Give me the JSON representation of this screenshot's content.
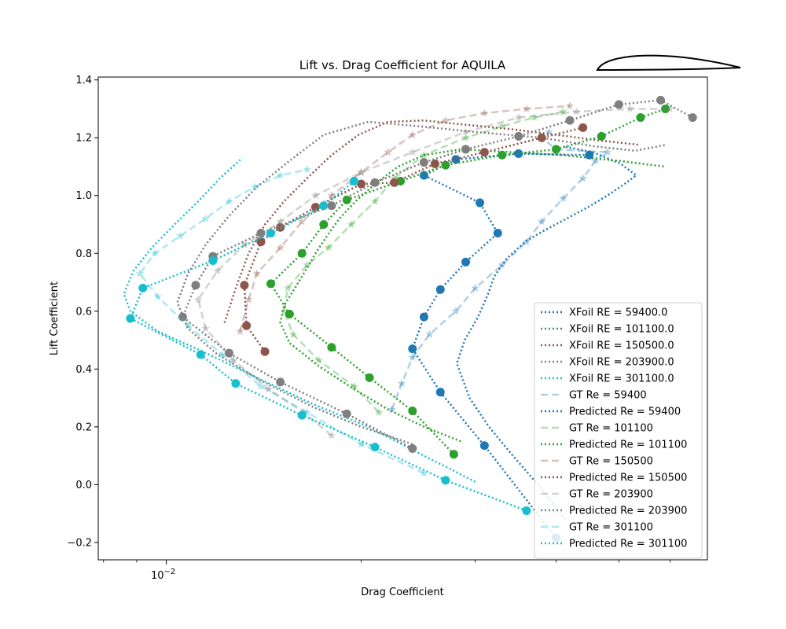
{
  "chart_data": {
    "type": "line",
    "title": "Lift vs. Drag Coefficient for AQUILA",
    "xlabel": "Drag Coefficient",
    "ylabel": "Lift Coefficient",
    "xscale": "log",
    "xlim": [
      0.00785,
      0.0685
    ],
    "ylim": [
      -0.26,
      1.41
    ],
    "x_ticks": [
      {
        "value": 0.01,
        "base": "10",
        "exp": "−2"
      }
    ],
    "y_ticks": [
      -0.2,
      0.0,
      0.2,
      0.4,
      0.6,
      0.8,
      1.0,
      1.2,
      1.4
    ],
    "y_tick_labels": [
      "−0.2",
      "0.0",
      "0.2",
      "0.4",
      "0.6",
      "0.8",
      "1.0",
      "1.2",
      "1.4"
    ],
    "legend_position": "lower-right",
    "colors": {
      "re59400": "#1f77b4",
      "re101100": "#2ca02c",
      "re150500": "#8c564b",
      "re203900": "#7f7f7f",
      "re301100": "#17becf"
    },
    "series": [
      {
        "name": "XFoil RE = 59400.0",
        "kind": "xfoil",
        "color": "#1f77b4",
        "x": [
          0.0413,
          0.0375,
          0.0343,
          0.0315,
          0.0294,
          0.0281,
          0.0289,
          0.0303,
          0.0314,
          0.0321,
          0.0335,
          0.0358,
          0.0384,
          0.0415,
          0.0448,
          0.048,
          0.051,
          0.0532,
          0.0503,
          0.0456,
          0.041
        ],
        "y": [
          -0.12,
          0.0,
          0.1,
          0.2,
          0.3,
          0.42,
          0.5,
          0.58,
          0.66,
          0.72,
          0.78,
          0.84,
          0.88,
          0.92,
          0.96,
          1.0,
          1.04,
          1.07,
          1.11,
          1.15,
          1.17
        ]
      },
      {
        "name": "XFoil RE = 101100.0",
        "kind": "xfoil",
        "color": "#2ca02c",
        "x": [
          0.0285,
          0.025,
          0.022,
          0.0195,
          0.0172,
          0.0155,
          0.015,
          0.0152,
          0.0158,
          0.0164,
          0.017,
          0.0177,
          0.0185,
          0.0196,
          0.021,
          0.0228,
          0.025,
          0.0285,
          0.034,
          0.041,
          0.05,
          0.059
        ],
        "y": [
          0.15,
          0.2,
          0.26,
          0.33,
          0.41,
          0.49,
          0.56,
          0.62,
          0.68,
          0.74,
          0.8,
          0.86,
          0.92,
          0.98,
          1.04,
          1.1,
          1.14,
          1.16,
          1.15,
          1.14,
          1.12,
          1.1
        ]
      },
      {
        "name": "XFoil RE = 150500.0",
        "kind": "xfoil",
        "color": "#8c564b",
        "x": [
          0.0123,
          0.0128,
          0.0134,
          0.0142,
          0.0152,
          0.0165,
          0.018,
          0.0198,
          0.022,
          0.025,
          0.029,
          0.034,
          0.04,
          0.047,
          0.054
        ],
        "y": [
          0.56,
          0.68,
          0.8,
          0.9,
          0.98,
          1.06,
          1.14,
          1.21,
          1.255,
          1.26,
          1.245,
          1.23,
          1.21,
          1.19,
          1.175
        ]
      },
      {
        "name": "XFoil RE = 203900.0",
        "kind": "xfoil",
        "color": "#7f7f7f",
        "x": [
          0.024,
          0.02,
          0.0168,
          0.014,
          0.012,
          0.0108,
          0.0104,
          0.0108,
          0.0115,
          0.0125,
          0.0138,
          0.0155,
          0.0175,
          0.0205,
          0.0245,
          0.03,
          0.038,
          0.046,
          0.053,
          0.059
        ],
        "y": [
          0.14,
          0.2,
          0.27,
          0.36,
          0.45,
          0.54,
          0.63,
          0.73,
          0.83,
          0.93,
          1.03,
          1.12,
          1.21,
          1.255,
          1.24,
          1.22,
          1.2,
          1.17,
          1.155,
          1.175
        ]
      },
      {
        "name": "XFoil RE = 301100.0",
        "kind": "xfoil",
        "color": "#17becf",
        "x": [
          0.03,
          0.025,
          0.0205,
          0.0168,
          0.0138,
          0.0114,
          0.0097,
          0.0088,
          0.0086,
          0.0089,
          0.0095,
          0.0103,
          0.0112,
          0.0121,
          0.0131
        ],
        "y": [
          0.01,
          0.1,
          0.2,
          0.28,
          0.37,
          0.46,
          0.53,
          0.6,
          0.66,
          0.74,
          0.82,
          0.9,
          0.98,
          1.06,
          1.13
        ]
      },
      {
        "name": "GT Re = 59400",
        "kind": "gt",
        "color": "#1f77b4",
        "x": [
          0.0223,
          0.0231,
          0.024,
          0.0255,
          0.028,
          0.03,
          0.033,
          0.036,
          0.038,
          0.041,
          0.044,
          0.046,
          0.048,
          0.04,
          0.038,
          0.039
        ],
        "y": [
          0.26,
          0.35,
          0.44,
          0.52,
          0.6,
          0.68,
          0.76,
          0.84,
          0.91,
          0.99,
          1.06,
          1.12,
          1.15,
          1.16,
          1.2,
          1.22
        ]
      },
      {
        "name": "Predicted Re = 59400",
        "kind": "pred",
        "color": "#1f77b4",
        "x": [
          0.04,
          0.031,
          0.0265,
          0.024,
          0.025,
          0.0265,
          0.029,
          0.0325,
          0.0305,
          0.025,
          0.028,
          0.035,
          0.045
        ],
        "y": [
          -0.185,
          0.135,
          0.32,
          0.47,
          0.58,
          0.675,
          0.77,
          0.87,
          0.975,
          1.07,
          1.125,
          1.145,
          1.14
        ]
      },
      {
        "name": "GT Re = 101100",
        "kind": "gt",
        "color": "#2ca02c",
        "x": [
          0.0213,
          0.0195,
          0.0172,
          0.0157,
          0.0152,
          0.0154,
          0.0165,
          0.0178,
          0.0193,
          0.021,
          0.0225,
          0.025,
          0.029,
          0.033,
          0.037,
          0.041
        ],
        "y": [
          0.25,
          0.34,
          0.43,
          0.52,
          0.6,
          0.68,
          0.76,
          0.82,
          0.9,
          0.98,
          1.06,
          1.14,
          1.2,
          1.24,
          1.27,
          1.29
        ]
      },
      {
        "name": "Predicted Re = 101100",
        "kind": "pred",
        "color": "#2ca02c",
        "x": [
          0.0278,
          0.024,
          0.0206,
          0.018,
          0.0155,
          0.0145,
          0.0162,
          0.0175,
          0.019,
          0.023,
          0.027,
          0.033,
          0.04,
          0.047,
          0.054,
          0.059
        ],
        "y": [
          0.105,
          0.255,
          0.37,
          0.475,
          0.59,
          0.695,
          0.8,
          0.9,
          0.985,
          1.05,
          1.105,
          1.14,
          1.16,
          1.205,
          1.27,
          1.3
        ]
      },
      {
        "name": "GT Re = 150500",
        "kind": "gt",
        "color": "#8c564b",
        "x": [
          0.013,
          0.0134,
          0.0138,
          0.015,
          0.0162,
          0.018,
          0.02,
          0.022,
          0.024,
          0.027,
          0.031,
          0.036,
          0.042
        ],
        "y": [
          0.53,
          0.64,
          0.73,
          0.82,
          0.91,
          1.0,
          1.08,
          1.15,
          1.21,
          1.26,
          1.285,
          1.3,
          1.31
        ]
      },
      {
        "name": "Predicted Re = 150500",
        "kind": "pred",
        "color": "#8c564b",
        "x": [
          0.0142,
          0.0133,
          0.0132,
          0.014,
          0.015,
          0.017,
          0.02,
          0.0225,
          0.026,
          0.031,
          0.038,
          0.044
        ],
        "y": [
          0.46,
          0.55,
          0.69,
          0.84,
          0.89,
          0.96,
          1.04,
          1.045,
          1.11,
          1.15,
          1.2,
          1.235
        ]
      },
      {
        "name": "GT Re = 203900",
        "kind": "gt",
        "color": "#7f7f7f",
        "x": [
          0.018,
          0.0163,
          0.0144,
          0.0127,
          0.0115,
          0.0112,
          0.012,
          0.0132,
          0.015,
          0.017,
          0.02,
          0.024,
          0.029,
          0.035,
          0.043,
          0.052,
          0.06
        ],
        "y": [
          0.17,
          0.25,
          0.33,
          0.43,
          0.54,
          0.64,
          0.74,
          0.83,
          0.91,
          1.0,
          1.08,
          1.15,
          1.22,
          1.27,
          1.29,
          1.3,
          1.3
        ]
      },
      {
        "name": "Predicted Re = 203900",
        "kind": "pred",
        "color": "#7f7f7f",
        "x": [
          0.024,
          0.019,
          0.015,
          0.0125,
          0.0106,
          0.0111,
          0.0118,
          0.014,
          0.018,
          0.021,
          0.025,
          0.029,
          0.035,
          0.042,
          0.05,
          0.058,
          0.065
        ],
        "y": [
          0.125,
          0.245,
          0.355,
          0.455,
          0.58,
          0.69,
          0.79,
          0.87,
          0.965,
          1.045,
          1.115,
          1.16,
          1.205,
          1.26,
          1.315,
          1.33,
          1.27
        ]
      },
      {
        "name": "GT Re = 301100",
        "kind": "gt",
        "color": "#17becf",
        "x": [
          0.025,
          0.02,
          0.0165,
          0.014,
          0.0122,
          0.0108,
          0.0097,
          0.0091,
          0.0096,
          0.0105,
          0.0115,
          0.0125,
          0.0137,
          0.015,
          0.0165
        ],
        "y": [
          0.04,
          0.14,
          0.25,
          0.34,
          0.45,
          0.55,
          0.65,
          0.73,
          0.8,
          0.86,
          0.92,
          0.98,
          1.03,
          1.07,
          1.09
        ]
      },
      {
        "name": "Predicted Re = 301100",
        "kind": "pred",
        "color": "#17becf",
        "x": [
          0.036,
          0.027,
          0.021,
          0.0162,
          0.0128,
          0.0113,
          0.0088,
          0.0092,
          0.0118,
          0.0145,
          0.0175,
          0.0195
        ],
        "y": [
          -0.09,
          0.015,
          0.13,
          0.24,
          0.35,
          0.45,
          0.575,
          0.68,
          0.775,
          0.87,
          0.965,
          1.05
        ]
      }
    ]
  }
}
